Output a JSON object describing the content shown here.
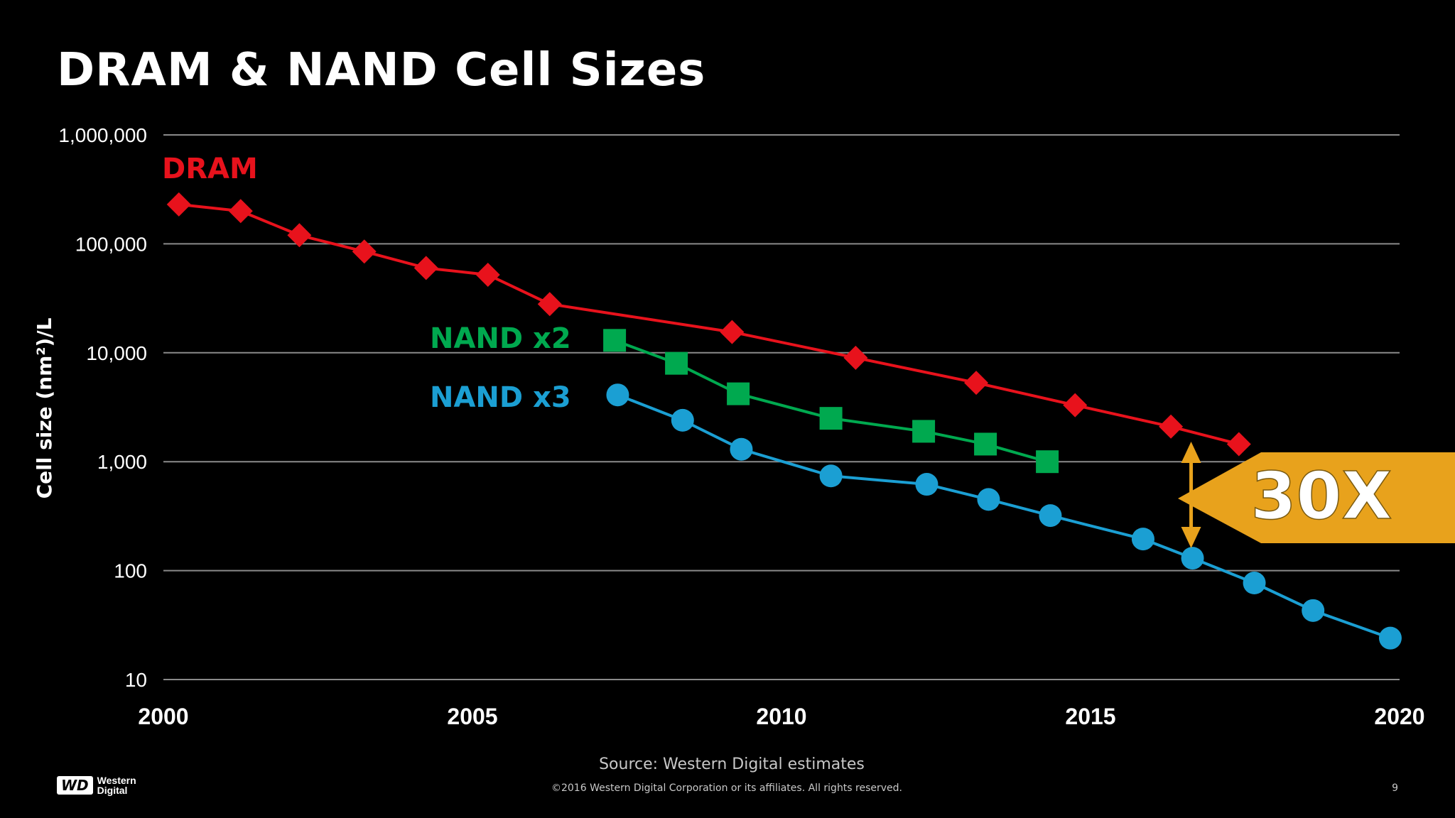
{
  "slide": {
    "title": "DRAM & NAND Cell Sizes",
    "source": "Source:  Western Digital estimates",
    "copyright": "©2016  Western Digital Corporation  or its affiliates.  All rights reserved.",
    "page_number": "9",
    "logo": {
      "mark": "WD",
      "line1": "Western",
      "line2": "Digital"
    }
  },
  "chart_data": {
    "type": "line",
    "yscale": "log",
    "ylabel": "Cell size (nm²)/L",
    "xlabel": "",
    "xlim": [
      2000,
      2020
    ],
    "ylim": [
      10,
      1000000
    ],
    "xticks": [
      2000,
      2005,
      2010,
      2015,
      2020
    ],
    "xtick_labels": [
      "2000",
      "2005",
      "2010",
      "2015",
      "2020"
    ],
    "yticks": [
      10,
      100,
      1000,
      10000,
      100000,
      1000000
    ],
    "ytick_labels": [
      "10",
      "100",
      "1,000",
      "10,000",
      "100,000",
      "1,000,000"
    ],
    "grid": "horizontal",
    "series": [
      {
        "name": "DRAM",
        "color": "#e8121c",
        "marker": "diamond",
        "x": [
          2000.25,
          2001.25,
          2002.2,
          2003.25,
          2004.25,
          2005.25,
          2006.25,
          2009.2,
          2011.2,
          2013.15,
          2014.75,
          2016.3,
          2017.4
        ],
        "y": [
          230000,
          200000,
          120000,
          85000,
          60000,
          52000,
          28000,
          15500,
          9000,
          5300,
          3300,
          2100,
          1450
        ]
      },
      {
        "name": "NAND x2",
        "color": "#00a94f",
        "marker": "square",
        "x": [
          2007.3,
          2008.3,
          2009.3,
          2010.8,
          2012.3,
          2013.3,
          2014.3
        ],
        "y": [
          13000,
          8000,
          4200,
          2500,
          1900,
          1450,
          1000
        ]
      },
      {
        "name": "NAND x3",
        "color": "#1b9fd3",
        "marker": "circle",
        "x": [
          2007.35,
          2008.4,
          2009.35,
          2010.8,
          2012.35,
          2013.35,
          2014.35,
          2015.85,
          2016.65,
          2017.65,
          2018.6,
          2019.85
        ],
        "y": [
          4100,
          2400,
          1300,
          740,
          620,
          450,
          320,
          195,
          130,
          77,
          43,
          24
        ]
      }
    ],
    "annotations": [
      {
        "text": "30X",
        "type": "callout",
        "color": "#e8a21c",
        "x": 2016.65,
        "y_from": 1450,
        "y_to": 130
      }
    ]
  }
}
